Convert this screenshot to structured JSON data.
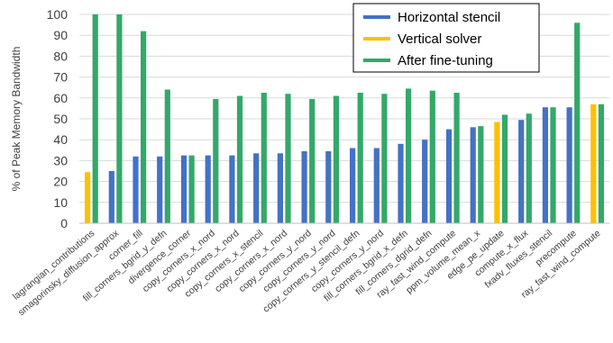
{
  "chart_data": {
    "type": "bar",
    "title": "",
    "xlabel": "",
    "ylabel": "% of Peak Memory Bandwidth",
    "ylim": [
      0,
      100
    ],
    "yticks": [
      0,
      10,
      20,
      30,
      40,
      50,
      60,
      70,
      80,
      90,
      100
    ],
    "grid": true,
    "legend_position": "top-right",
    "categories": [
      "lagrangian_contributions",
      "smagorinsky_diffusion_approx",
      "corner_fill",
      "fill_corners_bgrid_y_defn",
      "divergence_corner",
      "copy_corners_x_nord",
      "copy_corners_x_nord",
      "copy_corners_x_stencil",
      "copy_corners_x_nord",
      "copy_corners_y_nord",
      "copy_corners_y_nord",
      "copy_corners_y_stencil_defn",
      "copy_corners_y_nord",
      "fill_corners_bgrid_x_defn",
      "fill_corners_dgrid_defn",
      "ray_fast_wind_compute",
      "ppm_volume_mean_x",
      "edge_pe_update",
      "compute_x_flux",
      "fxadv_fluxes_stencil",
      "precompute",
      "ray_fast_wind_compute"
    ],
    "series": [
      {
        "name": "Horizontal stencil",
        "color": "#4472C4",
        "values": [
          null,
          25,
          32,
          32,
          32.5,
          32.5,
          32.5,
          33.5,
          33.5,
          34.5,
          34.5,
          36,
          36,
          38,
          40,
          45,
          46,
          null,
          49.5,
          55.5,
          55.5,
          null
        ]
      },
      {
        "name": "Vertical solver",
        "color": "#FFC000",
        "values": [
          24.5,
          null,
          null,
          null,
          null,
          null,
          null,
          null,
          null,
          null,
          null,
          null,
          null,
          null,
          null,
          null,
          null,
          48.5,
          null,
          null,
          null,
          57
        ]
      },
      {
        "name": "After fine-tuning",
        "color": "#33A86A",
        "values": [
          100,
          100,
          92,
          64,
          32.5,
          59.5,
          61,
          62.5,
          62,
          59.5,
          61,
          62.5,
          62,
          64.5,
          63.5,
          62.5,
          46.5,
          52,
          52.5,
          55.5,
          96,
          57
        ]
      }
    ]
  }
}
